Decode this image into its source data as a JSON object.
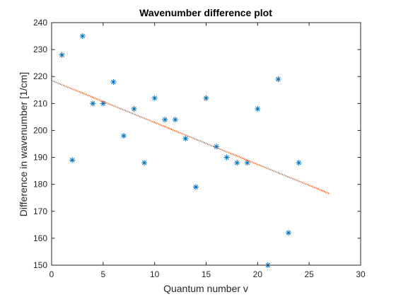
{
  "chart_data": {
    "type": "scatter",
    "title": "Wavenumber difference plot",
    "xlabel": "Quantum number v",
    "ylabel": "Difference in wavenumber [1/cm]",
    "xlim": [
      0,
      30
    ],
    "ylim": [
      150,
      240
    ],
    "xticks": [
      0,
      5,
      10,
      15,
      20,
      25,
      30
    ],
    "yticks": [
      150,
      160,
      170,
      180,
      190,
      200,
      210,
      220,
      230,
      240
    ],
    "grid": false,
    "series": [
      {
        "type": "scatter",
        "marker": "asterisk",
        "color": "#0072BD",
        "points": [
          {
            "x": 1,
            "y": 228
          },
          {
            "x": 2,
            "y": 189
          },
          {
            "x": 3,
            "y": 235
          },
          {
            "x": 4,
            "y": 210
          },
          {
            "x": 5,
            "y": 210
          },
          {
            "x": 6,
            "y": 218
          },
          {
            "x": 7,
            "y": 198
          },
          {
            "x": 8,
            "y": 208
          },
          {
            "x": 9,
            "y": 188
          },
          {
            "x": 10,
            "y": 212
          },
          {
            "x": 11,
            "y": 204
          },
          {
            "x": 12,
            "y": 204
          },
          {
            "x": 13,
            "y": 197
          },
          {
            "x": 14,
            "y": 179
          },
          {
            "x": 15,
            "y": 212
          },
          {
            "x": 16,
            "y": 194
          },
          {
            "x": 17,
            "y": 190
          },
          {
            "x": 18,
            "y": 188
          },
          {
            "x": 19,
            "y": 188
          },
          {
            "x": 20,
            "y": 208
          },
          {
            "x": 21,
            "y": 150
          },
          {
            "x": 22,
            "y": 219
          },
          {
            "x": 23,
            "y": 162
          },
          {
            "x": 24,
            "y": 188
          }
        ]
      },
      {
        "type": "line",
        "style": "dotted",
        "color": "#D95319",
        "points": [
          {
            "x": 0,
            "y": 218.5
          },
          {
            "x": 27,
            "y": 176.5
          }
        ]
      }
    ]
  }
}
